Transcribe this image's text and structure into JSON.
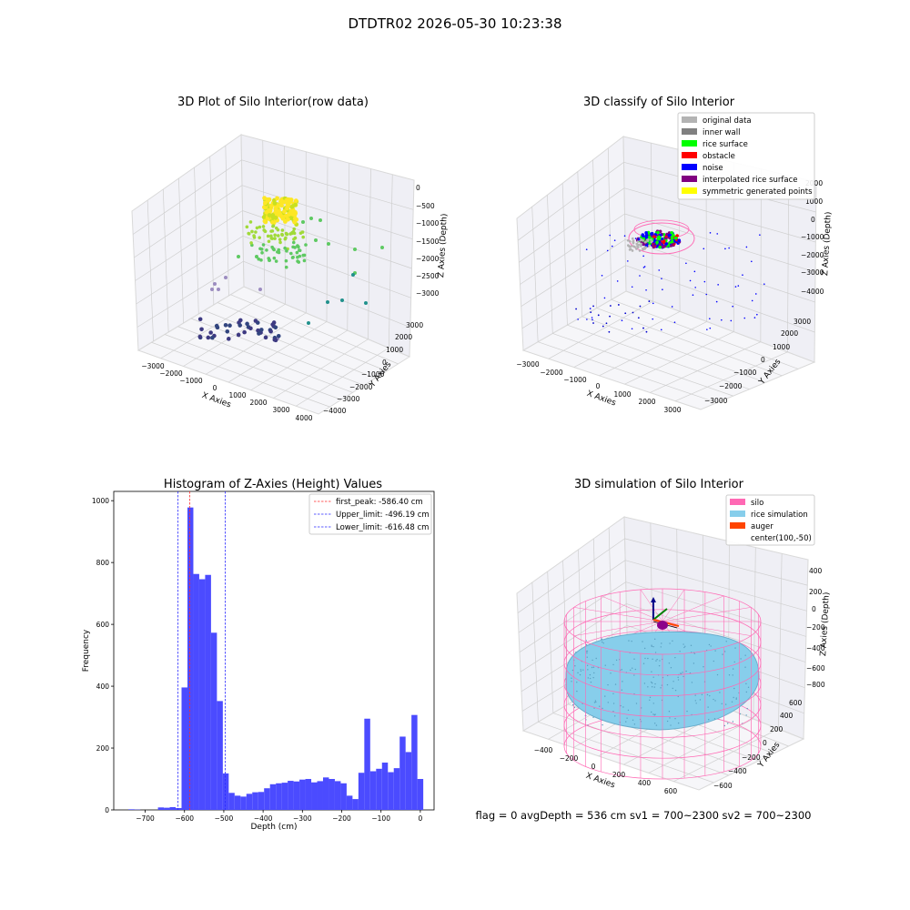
{
  "suptitle": "DTDTR02 2026-05-30 10:23:38",
  "footer": "flag = 0     avgDepth = 536 cm  sv1 = 700~2300  sv2 = 700~2300",
  "chart_data": [
    {
      "id": "raw",
      "type": "scatter",
      "title": "3D Plot of Silo Interior(row data)",
      "xlabel": "X Axies",
      "ylabel": "Y Axies",
      "zlabel": "Z Axies (Depth)",
      "x_ticks": [
        "−3000",
        "−2000",
        "−1000",
        "0",
        "1000",
        "2000",
        "3000",
        "4000"
      ],
      "y_ticks": [
        "−4000",
        "−3000",
        "−2000",
        "−1000",
        "0",
        "1000",
        "2000",
        "3000"
      ],
      "z_ticks": [
        "0",
        "−500",
        "−1000",
        "−1500",
        "−2000",
        "−2500",
        "−3000"
      ],
      "colormap": [
        "#440154",
        "#3b528b",
        "#21918c",
        "#5ec962",
        "#fde725"
      ]
    },
    {
      "id": "classify",
      "type": "scatter",
      "title": "3D classify of Silo Interior",
      "xlabel": "X Axies",
      "ylabel": "Y Axies",
      "zlabel": "Z Axies (Depth)",
      "x_ticks": [
        "−3000",
        "−2000",
        "−1000",
        "0",
        "1000",
        "2000",
        "3000"
      ],
      "y_ticks": [
        "−3000",
        "−2000",
        "−1000",
        "0",
        "1000",
        "2000",
        "3000"
      ],
      "z_ticks": [
        "2000",
        "1000",
        "0",
        "−1000",
        "−2000",
        "−3000",
        "−4000"
      ],
      "legend": [
        {
          "label": "original data",
          "color": "#b3b3b3"
        },
        {
          "label": "inner wall",
          "color": "#808080"
        },
        {
          "label": "rice surface",
          "color": "#00ff00"
        },
        {
          "label": "obstacle",
          "color": "#ff0000"
        },
        {
          "label": "noise",
          "color": "#0000ff"
        },
        {
          "label": "interpolated rice surface",
          "color": "#800080"
        },
        {
          "label": "symmetric generated points",
          "color": "#ffff00"
        }
      ]
    },
    {
      "id": "hist",
      "type": "bar",
      "title": "Histogram of Z-Axies (Height) Values",
      "xlabel": "Depth (cm)",
      "ylabel": "Frequency",
      "xlim": [
        -780,
        35
      ],
      "ylim": [
        0,
        1030
      ],
      "x_ticks": [
        -700,
        -600,
        -500,
        -400,
        -300,
        -200,
        -100,
        0
      ],
      "x_tick_labels": [
        "−700",
        "−600",
        "−500",
        "−400",
        "−300",
        "−200",
        "−100",
        "0"
      ],
      "y_ticks": [
        0,
        200,
        400,
        600,
        800,
        1000
      ],
      "bin_width": 15,
      "bins": [
        {
          "x": -735,
          "value": 2
        },
        {
          "x": -720,
          "value": 1
        },
        {
          "x": -705,
          "value": 0
        },
        {
          "x": -690,
          "value": 0
        },
        {
          "x": -675,
          "value": 0
        },
        {
          "x": -660,
          "value": 8
        },
        {
          "x": -645,
          "value": 7
        },
        {
          "x": -630,
          "value": 9
        },
        {
          "x": -615,
          "value": 6
        },
        {
          "x": -600,
          "value": 396
        },
        {
          "x": -585,
          "value": 978
        },
        {
          "x": -570,
          "value": 763
        },
        {
          "x": -555,
          "value": 746
        },
        {
          "x": -540,
          "value": 760
        },
        {
          "x": -525,
          "value": 573
        },
        {
          "x": -510,
          "value": 352
        },
        {
          "x": -495,
          "value": 118
        },
        {
          "x": -480,
          "value": 55
        },
        {
          "x": -465,
          "value": 46
        },
        {
          "x": -450,
          "value": 43
        },
        {
          "x": -435,
          "value": 52
        },
        {
          "x": -420,
          "value": 57
        },
        {
          "x": -405,
          "value": 58
        },
        {
          "x": -390,
          "value": 70
        },
        {
          "x": -375,
          "value": 83
        },
        {
          "x": -360,
          "value": 86
        },
        {
          "x": -345,
          "value": 88
        },
        {
          "x": -330,
          "value": 94
        },
        {
          "x": -315,
          "value": 92
        },
        {
          "x": -300,
          "value": 98
        },
        {
          "x": -285,
          "value": 100
        },
        {
          "x": -270,
          "value": 89
        },
        {
          "x": -255,
          "value": 93
        },
        {
          "x": -240,
          "value": 105
        },
        {
          "x": -225,
          "value": 100
        },
        {
          "x": -210,
          "value": 93
        },
        {
          "x": -195,
          "value": 86
        },
        {
          "x": -180,
          "value": 46
        },
        {
          "x": -165,
          "value": 35
        },
        {
          "x": -150,
          "value": 120
        },
        {
          "x": -135,
          "value": 295
        },
        {
          "x": -120,
          "value": 125
        },
        {
          "x": -105,
          "value": 133
        },
        {
          "x": -90,
          "value": 153
        },
        {
          "x": -75,
          "value": 122
        },
        {
          "x": -60,
          "value": 135
        },
        {
          "x": -45,
          "value": 237
        },
        {
          "x": -30,
          "value": 187
        },
        {
          "x": -15,
          "value": 307
        },
        {
          "x": 0,
          "value": 100
        }
      ],
      "bar_color": "#4b4bff",
      "vlines": [
        {
          "label": "first_peak: -586.40 cm",
          "x": -586.4,
          "color": "#ff2a2a"
        },
        {
          "label": "Upper_limit: -496.19 cm",
          "x": -496.19,
          "color": "#2a2aff"
        },
        {
          "label": "Lower_limit: -616.48 cm",
          "x": -616.48,
          "color": "#2a2aff"
        }
      ]
    },
    {
      "id": "sim",
      "type": "scatter",
      "title": "3D simulation of Silo Interior",
      "xlabel": "X Axies",
      "ylabel": "Y Axies",
      "zlabel": "Z Axies (Depth)",
      "x_ticks": [
        "−400",
        "−200",
        "0",
        "200",
        "400",
        "600"
      ],
      "y_ticks": [
        "−600",
        "−400",
        "−200",
        "0",
        "200",
        "400",
        "600"
      ],
      "z_ticks": [
        "400",
        "200",
        "0",
        "−200",
        "−400",
        "−600",
        "−800"
      ],
      "legend": [
        {
          "label": "silo",
          "color": "#ff69b4"
        },
        {
          "label": "rice simulation",
          "color": "#87ceeb"
        },
        {
          "label": "auger",
          "color": "#ff4500"
        },
        {
          "label": "center(100,-50)",
          "color": "none"
        }
      ]
    }
  ]
}
